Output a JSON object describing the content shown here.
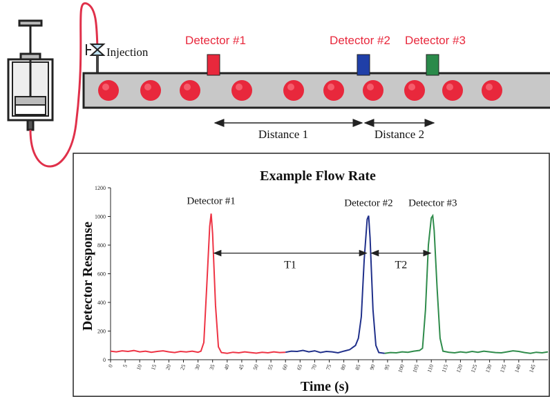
{
  "diagram": {
    "injection_label": "Injection",
    "detectors": [
      "Detector #1",
      "Detector #2",
      "Detector #3"
    ],
    "distances": [
      "Distance 1",
      "Distance 2"
    ]
  },
  "chart_data": {
    "type": "line",
    "title": "Example Flow Rate",
    "x_label": "Time (s)",
    "y_label": "Detector Response",
    "annotations": [
      "T1",
      "T2"
    ],
    "xlim": [
      0,
      150
    ],
    "ylim": [
      0,
      1200
    ],
    "xticks": [
      0,
      5,
      10,
      15,
      20,
      25,
      30,
      35,
      40,
      45,
      50,
      55,
      60,
      65,
      70,
      75,
      80,
      85,
      90,
      95,
      100,
      105,
      110,
      115,
      120,
      125,
      130,
      135,
      140,
      145
    ],
    "yticks": [
      0,
      200,
      400,
      600,
      800,
      1000,
      1200
    ],
    "series": [
      {
        "name": "Detector #1",
        "color": "#ee3344",
        "x": [
          0,
          2,
          4,
          6,
          8,
          10,
          12,
          14,
          16,
          18,
          20,
          22,
          24,
          26,
          28,
          30,
          31,
          32,
          33,
          34,
          34.5,
          35,
          36,
          37,
          38,
          40,
          42,
          44,
          46,
          48,
          50,
          52,
          54,
          56,
          58,
          60
        ],
        "values": [
          60,
          55,
          62,
          58,
          64,
          55,
          60,
          52,
          58,
          62,
          55,
          50,
          58,
          54,
          60,
          52,
          60,
          120,
          520,
          930,
          1020,
          880,
          380,
          90,
          50,
          45,
          52,
          48,
          55,
          50,
          46,
          52,
          48,
          55,
          50,
          52
        ]
      },
      {
        "name": "Detector #2",
        "color": "#1f2f8a",
        "x": [
          60,
          62,
          64,
          66,
          68,
          70,
          72,
          74,
          76,
          78,
          80,
          82,
          84,
          85,
          86,
          87,
          88,
          88.5,
          89,
          90,
          91,
          92,
          94
        ],
        "values": [
          52,
          60,
          58,
          65,
          55,
          62,
          50,
          58,
          55,
          48,
          60,
          70,
          100,
          150,
          300,
          700,
          980,
          1005,
          850,
          350,
          100,
          50,
          45
        ]
      },
      {
        "name": "Detector #3",
        "color": "#2e8b4a",
        "x": [
          94,
          96,
          98,
          100,
          102,
          104,
          106,
          107,
          108,
          109,
          110,
          110.5,
          111,
          112,
          113,
          114,
          116,
          118,
          120,
          122,
          124,
          126,
          128,
          130,
          132,
          134,
          136,
          138,
          140,
          142,
          144,
          146,
          148,
          150
        ],
        "values": [
          45,
          50,
          48,
          55,
          52,
          60,
          65,
          80,
          350,
          800,
          990,
          1005,
          900,
          500,
          150,
          60,
          52,
          48,
          55,
          50,
          58,
          52,
          60,
          55,
          50,
          48,
          55,
          62,
          58,
          50,
          45,
          52,
          48,
          55
        ]
      }
    ]
  }
}
